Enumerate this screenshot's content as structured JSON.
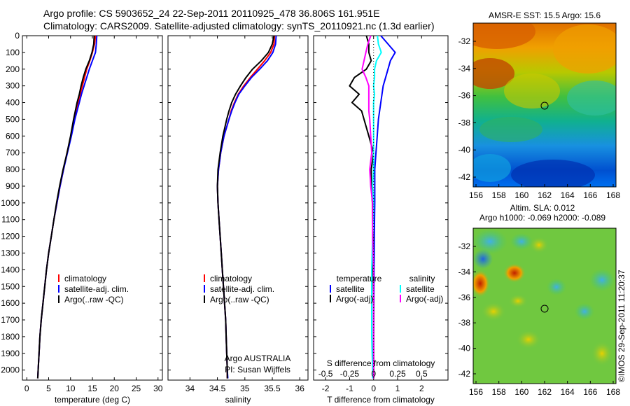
{
  "header": {
    "line1": "Argo profile: CS 5903652_24 22-Sep-2011 20110925_478 36.806S 161.951E",
    "line2": "Climatology: CARS2009. Satellite-adjusted climatology: synTS_20110921.nc (1.3d earlier)"
  },
  "sst_map": {
    "title": "AMSR-E SST: 15.5 Argo: 15.6",
    "x_ticks": [
      "156",
      "158",
      "160",
      "162",
      "164",
      "166",
      "168"
    ],
    "y_ticks": [
      "-32",
      "-34",
      "-36",
      "-38",
      "-40",
      "-42"
    ]
  },
  "sla_map": {
    "title_line1": "Altim. SLA: 0.012",
    "title_line2": "Argo h1000: -0.069 h2000: -0.089",
    "x_ticks": [
      "156",
      "158",
      "160",
      "162",
      "164",
      "166",
      "168"
    ],
    "y_ticks": [
      "-32",
      "-34",
      "-36",
      "-38",
      "-40",
      "-42"
    ]
  },
  "footer": {
    "timestamp": "©IMOS 29-Sep-2011 11:20:37"
  },
  "colors": {
    "climatology": "#ff0000",
    "satellite": "#0000ff",
    "argo": "#000000",
    "salinity_satellite": "#00ffff",
    "salinity_argo": "#ff00ff"
  },
  "chart_data": [
    {
      "type": "line",
      "xlabel": "temperature (deg C)",
      "ylabel": "",
      "xlim": [
        -1,
        31
      ],
      "ylim": [
        2060,
        0
      ],
      "x_ticks": [
        0,
        5,
        10,
        15,
        20,
        25,
        30
      ],
      "y_ticks": [
        0,
        100,
        200,
        300,
        400,
        500,
        600,
        700,
        800,
        900,
        1000,
        1100,
        1200,
        1300,
        1400,
        1500,
        1600,
        1700,
        1800,
        1900,
        2000
      ],
      "legend": [
        "climatology",
        "satellite-adj. clim.",
        "Argo(..raw -QC)"
      ],
      "legend_placement": "lower-center",
      "depth": [
        0,
        50,
        100,
        150,
        200,
        250,
        300,
        350,
        400,
        450,
        500,
        600,
        700,
        800,
        900,
        1000,
        1100,
        1200,
        1300,
        1400,
        1500,
        1600,
        1700,
        1800,
        1900,
        2000,
        2050
      ],
      "series": [
        {
          "name": "climatology",
          "values": [
            15.7,
            15.5,
            15.0,
            14.4,
            13.7,
            13.2,
            12.7,
            12.2,
            11.7,
            11.2,
            10.8,
            10.1,
            9.2,
            8.4,
            7.6,
            6.9,
            6.2,
            5.6,
            5.0,
            4.5,
            4.1,
            3.7,
            3.3,
            3.0,
            2.8,
            2.6,
            2.5
          ]
        },
        {
          "name": "satellite-adj. clim.",
          "values": [
            16.0,
            15.9,
            15.7,
            15.0,
            14.3,
            13.7,
            13.1,
            12.5,
            12.0,
            11.5,
            11.0,
            10.2,
            9.3,
            8.4,
            7.6,
            6.9,
            6.2,
            5.6,
            5.0,
            4.5,
            4.1,
            3.7,
            3.3,
            3.0,
            2.8,
            2.6,
            2.5
          ]
        },
        {
          "name": "Argo(..raw -QC)",
          "values": [
            15.4,
            15.3,
            14.9,
            14.3,
            13.5,
            12.9,
            12.4,
            12.0,
            11.5,
            11.1,
            10.7,
            10.0,
            9.2,
            8.3,
            7.5,
            6.8,
            6.2,
            5.6,
            5.0,
            4.5,
            4.1,
            3.7,
            3.3,
            3.0,
            2.8,
            2.6,
            2.5
          ]
        }
      ]
    },
    {
      "type": "line",
      "xlabel": "salinity",
      "ylabel": "",
      "xlim": [
        33.6,
        36.15
      ],
      "ylim": [
        2060,
        0
      ],
      "x_ticks": [
        "34",
        "34.5",
        "35",
        "35.5",
        "36"
      ],
      "legend": [
        "climatology",
        "satellite-adj. clim.",
        "Argo(..raw -QC)"
      ],
      "legend_placement": "lower-center",
      "annotation": [
        "Argo AUSTRALIA",
        "PI: Susan Wijffels"
      ],
      "depth": [
        0,
        50,
        100,
        150,
        200,
        250,
        300,
        350,
        400,
        450,
        500,
        600,
        700,
        800,
        900,
        1000,
        1100,
        1200,
        1300,
        1400,
        1500,
        1600,
        1700,
        1800,
        1900,
        2000,
        2050
      ],
      "series": [
        {
          "name": "climatology",
          "values": [
            35.54,
            35.53,
            35.47,
            35.36,
            35.23,
            35.1,
            34.98,
            34.88,
            34.81,
            34.75,
            34.71,
            34.62,
            34.56,
            34.52,
            34.5,
            34.51,
            34.53,
            34.55,
            34.57,
            34.59,
            34.61,
            34.63,
            34.65,
            34.66,
            34.67,
            34.68,
            34.68
          ]
        },
        {
          "name": "satellite-adj. clim.",
          "values": [
            35.57,
            35.56,
            35.51,
            35.41,
            35.27,
            35.12,
            35.0,
            34.89,
            34.82,
            34.76,
            34.71,
            34.62,
            34.56,
            34.52,
            34.5,
            34.51,
            34.53,
            34.55,
            34.57,
            34.59,
            34.61,
            34.63,
            34.65,
            34.66,
            34.67,
            34.68,
            34.69
          ]
        },
        {
          "name": "Argo(..raw -QC)",
          "values": [
            35.53,
            35.5,
            35.43,
            35.3,
            35.14,
            35.02,
            34.92,
            34.83,
            34.76,
            34.71,
            34.67,
            34.6,
            34.55,
            34.51,
            34.5,
            34.51,
            34.53,
            34.55,
            34.57,
            34.59,
            34.61,
            34.63,
            34.65,
            34.66,
            34.67,
            34.68,
            34.68
          ]
        }
      ]
    },
    {
      "type": "line",
      "xlabel": "T difference from climatology",
      "x2label": "S difference from climatology",
      "ylabel": "",
      "xlim": [
        -2.5,
        3.1
      ],
      "ylim": [
        2060,
        0
      ],
      "x_ticks": [
        "-2",
        "-1",
        "0",
        "1",
        "2"
      ],
      "x2_ticks": [
        "-0.5",
        "-0.25",
        "0",
        "0.25",
        "0.5"
      ],
      "legend_groups": [
        {
          "title": "temperature",
          "items": [
            "satellite",
            "Argo(-adj)"
          ]
        },
        {
          "title": "salinity",
          "items": [
            "satellite",
            "Argo(-adj)"
          ]
        }
      ],
      "legend_placement": "lower-center",
      "depth": [
        0,
        50,
        100,
        150,
        200,
        250,
        300,
        350,
        400,
        450,
        500,
        600,
        700,
        800,
        900,
        1000,
        1200,
        1400,
        1600,
        1800,
        2000,
        2050
      ],
      "series": [
        {
          "name": "temperature satellite",
          "values": [
            0.3,
            0.6,
            0.9,
            0.7,
            0.6,
            0.5,
            0.4,
            0.35,
            0.3,
            0.25,
            0.2,
            0.15,
            0.1,
            0.05,
            0.05,
            0.05,
            0.03,
            0.02,
            0.01,
            0.0,
            0.0,
            0.0
          ]
        },
        {
          "name": "temperature Argo(-adj)",
          "values": [
            -0.3,
            -0.2,
            -0.2,
            -0.1,
            -0.3,
            -0.8,
            -1.0,
            -0.6,
            -0.9,
            -0.5,
            -0.4,
            -0.2,
            0.0,
            -0.1,
            -0.1,
            -0.05,
            -0.03,
            -0.02,
            0.0,
            0.0,
            0.0,
            0.0
          ]
        },
        {
          "name": "salinity satellite",
          "values": [
            0.04,
            0.05,
            0.08,
            0.03,
            0.01,
            0.01,
            0.0,
            0.01,
            0.0,
            0.0,
            0.0,
            0.0,
            0.0,
            0.0,
            -0.01,
            0.0,
            -0.01,
            -0.02,
            -0.02,
            -0.02,
            -0.01,
            -0.01
          ]
        },
        {
          "name": "salinity Argo(-adj)",
          "values": [
            -0.03,
            -0.06,
            -0.08,
            -0.1,
            -0.12,
            -0.08,
            -0.05,
            -0.05,
            -0.05,
            -0.05,
            -0.04,
            -0.03,
            -0.02,
            -0.04,
            -0.03,
            -0.01,
            -0.01,
            0.0,
            0.0,
            0.0,
            0.0,
            0.0
          ]
        }
      ]
    }
  ]
}
